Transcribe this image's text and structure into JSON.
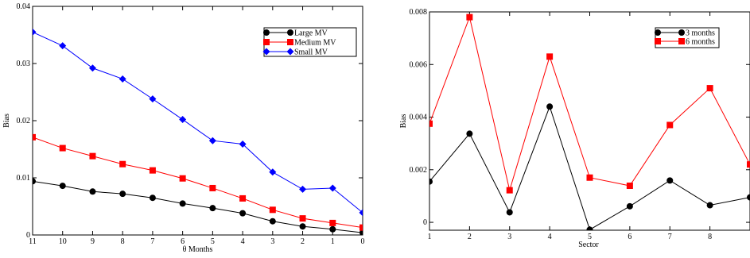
{
  "chart_data": [
    {
      "type": "line",
      "xlabel": "θ Months",
      "ylabel": "Bias",
      "x": [
        11,
        10,
        9,
        8,
        7,
        6,
        5,
        4,
        3,
        2,
        1,
        0
      ],
      "x_reversed": true,
      "xlim": [
        11,
        0
      ],
      "ylim": [
        0,
        0.04
      ],
      "x_ticks": [
        "11",
        "10",
        "9",
        "8",
        "7",
        "6",
        "5",
        "4",
        "3",
        "2",
        "1",
        "0"
      ],
      "y_ticks": [
        "0",
        "0.01",
        "0.02",
        "0.03",
        "0.04"
      ],
      "grid": false,
      "legend_position": "top-right",
      "series": [
        {
          "name": "Large MV",
          "color": "#000000",
          "marker": "circle",
          "values": [
            0.0094,
            0.0086,
            0.0076,
            0.0072,
            0.0065,
            0.0055,
            0.0047,
            0.0038,
            0.0024,
            0.0015,
            0.001,
            0.0004
          ]
        },
        {
          "name": "Medium MV",
          "color": "#ff0000",
          "marker": "square",
          "values": [
            0.0171,
            0.0152,
            0.0138,
            0.0124,
            0.0113,
            0.0099,
            0.0082,
            0.0064,
            0.0044,
            0.0029,
            0.0021,
            0.0013
          ]
        },
        {
          "name": "Small MV",
          "color": "#0000ff",
          "marker": "diamond",
          "values": [
            0.0355,
            0.0331,
            0.0292,
            0.0273,
            0.0238,
            0.0202,
            0.0165,
            0.0159,
            0.011,
            0.008,
            0.0082,
            0.0039
          ]
        }
      ]
    },
    {
      "type": "line",
      "xlabel": "Sector",
      "ylabel": "Bias",
      "x": [
        1,
        2,
        3,
        4,
        5,
        6,
        7,
        8,
        9
      ],
      "xlim": [
        1,
        9
      ],
      "ylim": [
        -0.0003,
        0.008
      ],
      "x_ticks": [
        "1",
        "2",
        "3",
        "4",
        "5",
        "6",
        "7",
        "8"
      ],
      "y_ticks": [
        "0",
        "0.002",
        "0.004",
        "0.006",
        "0.008"
      ],
      "grid": false,
      "legend_position": "top-right",
      "series": [
        {
          "name": "3 months",
          "color": "#000000",
          "marker": "circle",
          "values": [
            0.00155,
            0.00337,
            0.00038,
            0.0044,
            -0.00028,
            0.00061,
            0.00159,
            0.00065,
            0.00095
          ]
        },
        {
          "name": "6 months",
          "color": "#ff0000",
          "marker": "square",
          "values": [
            0.00375,
            0.0078,
            0.00122,
            0.0063,
            0.0017,
            0.00139,
            0.0037,
            0.0051,
            0.0022
          ]
        }
      ]
    }
  ]
}
